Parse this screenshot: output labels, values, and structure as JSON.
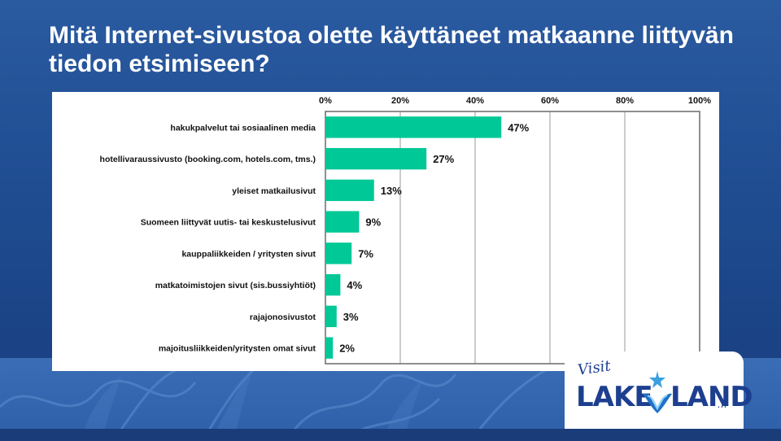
{
  "slide": {
    "title": "Mitä Internet-sivustoa olette käyttäneet matkaanne liittyvän tiedon etsimiseen?"
  },
  "logo": {
    "script": "Visit",
    "lake": "LAKE",
    "land": "LAND",
    "suffix": ".fi",
    "icon": "water-splash-icon",
    "color": "#1d3f8f"
  },
  "colors": {
    "bar": "#00c896",
    "background": "#1f4a8d"
  },
  "chart_data": {
    "type": "bar",
    "orientation": "horizontal",
    "categories": [
      "hakukpalvelut tai sosiaalinen media",
      "hotellivaraussivusto (booking.com, hotels.com, tms.)",
      "yleiset matkailusivut",
      "Suomeen liittyvät uutis- tai keskustelusivut",
      "kauppaliikkeiden / yritysten sivut",
      "matkatoimistojen sivut (sis.bussiyhtiöt)",
      "rajajonosivustot",
      "majoitusliikkeiden/yritysten omat sivut"
    ],
    "values": [
      47,
      27,
      13,
      9,
      7,
      4,
      3,
      2
    ],
    "value_labels": [
      "47%",
      "27%",
      "13%",
      "9%",
      "7%",
      "4%",
      "3%",
      "2%"
    ],
    "xlim": [
      0,
      100
    ],
    "xticks": [
      0,
      20,
      40,
      60,
      80,
      100
    ],
    "xtick_labels": [
      "0%",
      "20%",
      "40%",
      "60%",
      "80%",
      "100%"
    ],
    "axis_position": "top",
    "grid": true,
    "legend": "none"
  }
}
